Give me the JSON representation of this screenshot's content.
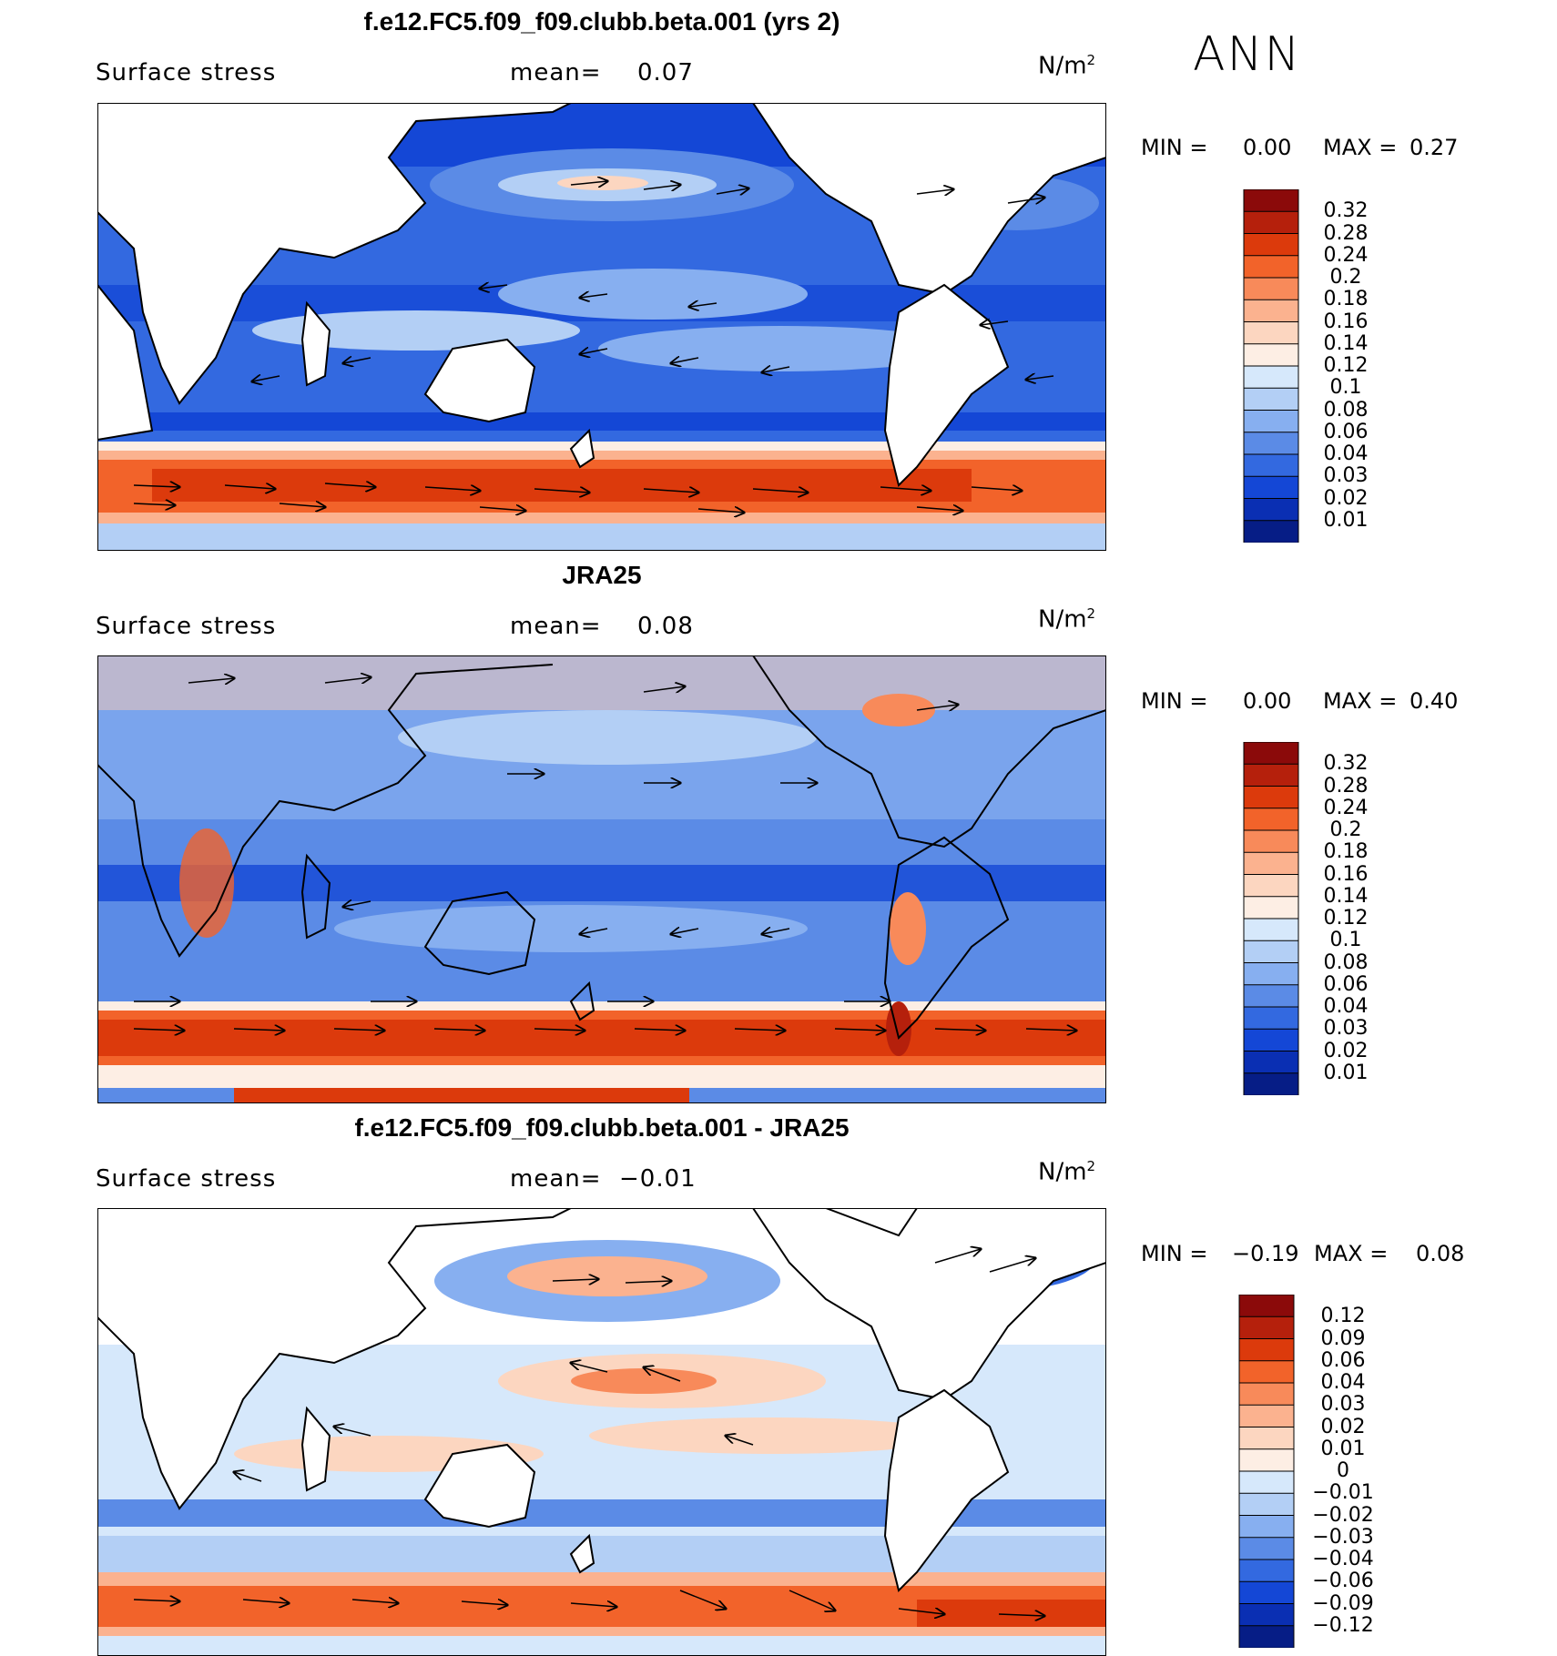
{
  "season": "ANN",
  "panels": [
    {
      "title": "f.e12.FC5.f09_f09.clubb.beta.001 (yrs 2)",
      "variable": "Surface stress",
      "mean_label": "mean=",
      "mean_value": "0.07",
      "units_base": "N/m",
      "units_exp": "2",
      "min_label": "MIN =",
      "min_value": "0.00",
      "max_label": "MAX =",
      "max_value": "0.27",
      "levels": [
        "0.32",
        "0.28",
        "0.24",
        "0.2",
        "0.18",
        "0.16",
        "0.14",
        "0.12",
        "0.1",
        "0.08",
        "0.06",
        "0.04",
        "0.03",
        "0.02",
        "0.01"
      ],
      "colors": [
        "#8b0a0a",
        "#b5200c",
        "#dc3a0c",
        "#f2632a",
        "#f88a5a",
        "#fbb28f",
        "#fcd6c0",
        "#fdeee4",
        "#d6e8fb",
        "#b3cff5",
        "#87aff0",
        "#5b8be6",
        "#3369e0",
        "#1447d6",
        "#0a2fb3",
        "#061d86"
      ]
    },
    {
      "title": "JRA25",
      "variable": "Surface stress",
      "mean_label": "mean=",
      "mean_value": "0.08",
      "units_base": "N/m",
      "units_exp": "2",
      "min_label": "MIN =",
      "min_value": "0.00",
      "max_label": "MAX =",
      "max_value": "0.40",
      "levels": [
        "0.32",
        "0.28",
        "0.24",
        "0.2",
        "0.18",
        "0.16",
        "0.14",
        "0.12",
        "0.1",
        "0.08",
        "0.06",
        "0.04",
        "0.03",
        "0.02",
        "0.01"
      ],
      "colors": [
        "#8b0a0a",
        "#b5200c",
        "#dc3a0c",
        "#f2632a",
        "#f88a5a",
        "#fbb28f",
        "#fcd6c0",
        "#fdeee4",
        "#d6e8fb",
        "#b3cff5",
        "#87aff0",
        "#5b8be6",
        "#3369e0",
        "#1447d6",
        "#0a2fb3",
        "#061d86"
      ]
    },
    {
      "title": "f.e12.FC5.f09_f09.clubb.beta.001 - JRA25",
      "variable": "Surface stress",
      "mean_label": "mean=",
      "mean_value": "−0.01",
      "units_base": "N/m",
      "units_exp": "2",
      "min_label": "MIN =",
      "min_value": "−0.19",
      "max_label": "MAX =",
      "max_value": "0.08",
      "levels": [
        "0.12",
        "0.09",
        "0.06",
        "0.04",
        "0.03",
        "0.02",
        "0.01",
        "0",
        "−0.01",
        "−0.02",
        "−0.03",
        "−0.04",
        "−0.06",
        "−0.09",
        "−0.12"
      ],
      "colors": [
        "#8b0a0a",
        "#b5200c",
        "#dc3a0c",
        "#f2632a",
        "#f88a5a",
        "#fbb28f",
        "#fcd6c0",
        "#fdeee4",
        "#d6e8fb",
        "#b3cff5",
        "#87aff0",
        "#5b8be6",
        "#3369e0",
        "#1447d6",
        "#0a2fb3",
        "#061d86"
      ]
    }
  ]
}
